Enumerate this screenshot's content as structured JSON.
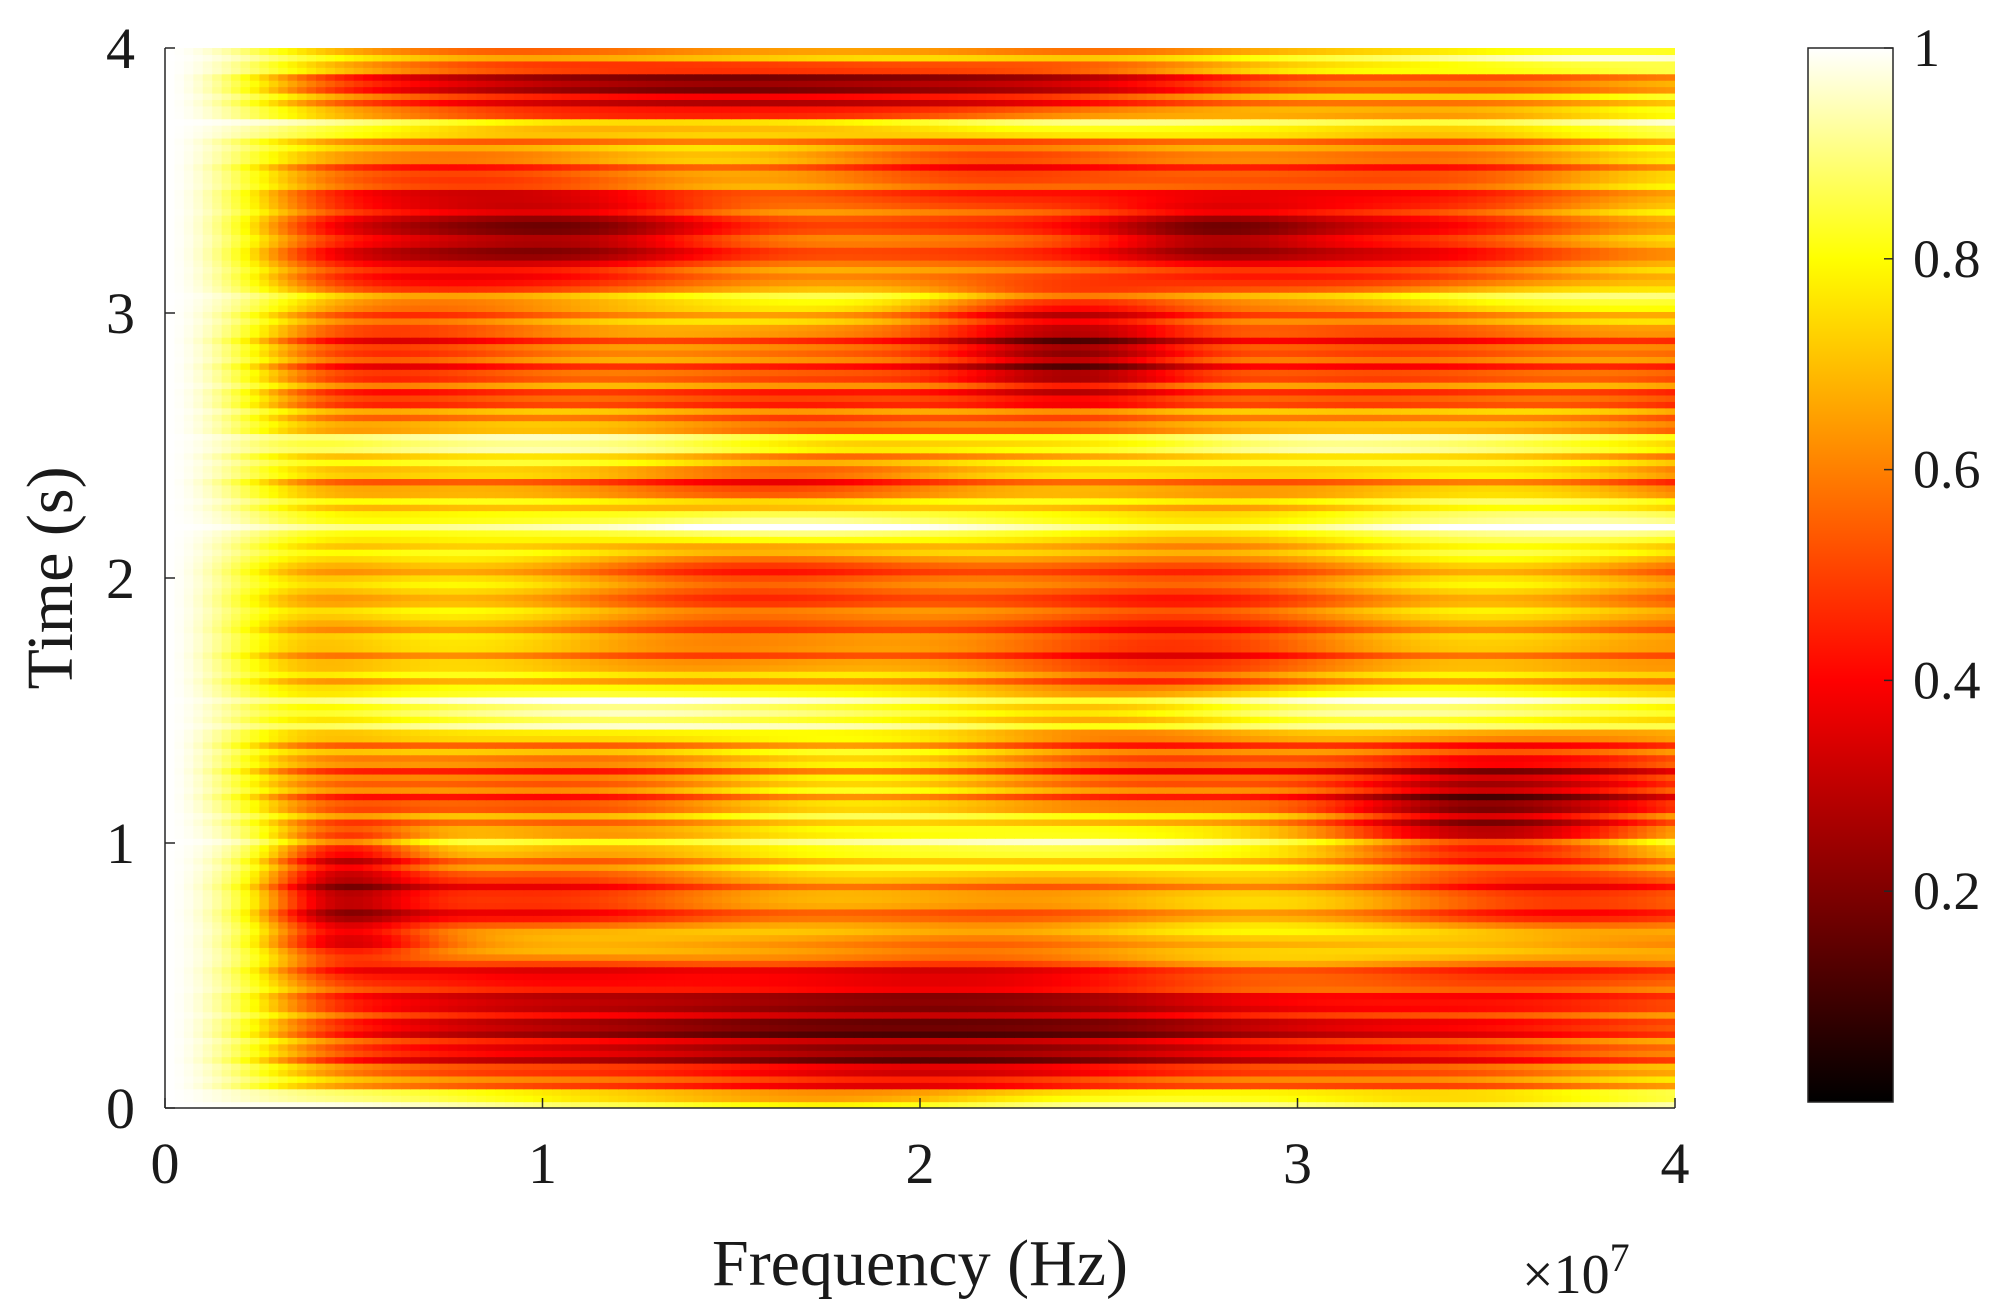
{
  "chart_data": {
    "type": "heatmap",
    "title": "",
    "xlabel": "Frequency (Hz)",
    "ylabel": "Time (s)",
    "x_multiplier_label": "×10",
    "x_multiplier_exponent": "7",
    "xlim": [
      0,
      4
    ],
    "ylim": [
      0,
      4
    ],
    "x_ticks": [
      0,
      1,
      2,
      3,
      4
    ],
    "x_tick_labels": [
      "0",
      "1",
      "2",
      "3",
      "4"
    ],
    "y_ticks": [
      0,
      1,
      2,
      3,
      4
    ],
    "y_tick_labels": [
      "0",
      "1",
      "2",
      "3",
      "4"
    ],
    "colorbar": {
      "colormap": "hot",
      "range": [
        0,
        1
      ],
      "ticks": [
        0.2,
        0.4,
        0.6,
        0.8,
        1
      ],
      "tick_labels": [
        "0.2",
        "0.4",
        "0.6",
        "0.8",
        "1"
      ],
      "colors": [
        "#000000",
        "#800000",
        "#ff0000",
        "#ff8000",
        "#ffff00",
        "#ffffff"
      ]
    },
    "grid": false,
    "freq_count": 160,
    "time_count": 165,
    "description_pattern": {
      "low_frequency_value": 1.0,
      "background_value": 0.55,
      "bright_time_bands": [
        {
          "time": 0.03,
          "level": 0.95,
          "width": 0.07
        },
        {
          "time": 0.62,
          "level": 0.75,
          "width": 0.06
        },
        {
          "time": 1.0,
          "level": 0.85,
          "width": 0.1
        },
        {
          "time": 1.5,
          "level": 0.95,
          "width": 0.1
        },
        {
          "time": 2.2,
          "level": 0.95,
          "width": 0.09
        },
        {
          "time": 2.5,
          "level": 0.9,
          "width": 0.08
        },
        {
          "time": 3.05,
          "level": 0.8,
          "width": 0.08
        },
        {
          "time": 3.72,
          "level": 0.9,
          "width": 0.07
        },
        {
          "time": 3.97,
          "level": 0.95,
          "width": 0.05
        }
      ],
      "dark_regions": [
        {
          "freq": 2.0,
          "time": 0.3,
          "level": 0.18,
          "df": 1.6,
          "dt": 0.22
        },
        {
          "freq": 0.45,
          "time": 0.8,
          "level": 0.2,
          "df": 0.25,
          "dt": 0.3
        },
        {
          "freq": 3.5,
          "time": 1.15,
          "level": 0.2,
          "df": 0.4,
          "dt": 0.2
        },
        {
          "freq": 1.0,
          "time": 3.3,
          "level": 0.2,
          "df": 0.6,
          "dt": 0.2
        },
        {
          "freq": 2.4,
          "time": 2.85,
          "level": 0.2,
          "df": 0.4,
          "dt": 0.25
        },
        {
          "freq": 2.8,
          "time": 3.3,
          "level": 0.2,
          "df": 0.4,
          "dt": 0.15
        },
        {
          "freq": 1.5,
          "time": 3.85,
          "level": 0.22,
          "df": 1.2,
          "dt": 0.12
        }
      ]
    }
  }
}
